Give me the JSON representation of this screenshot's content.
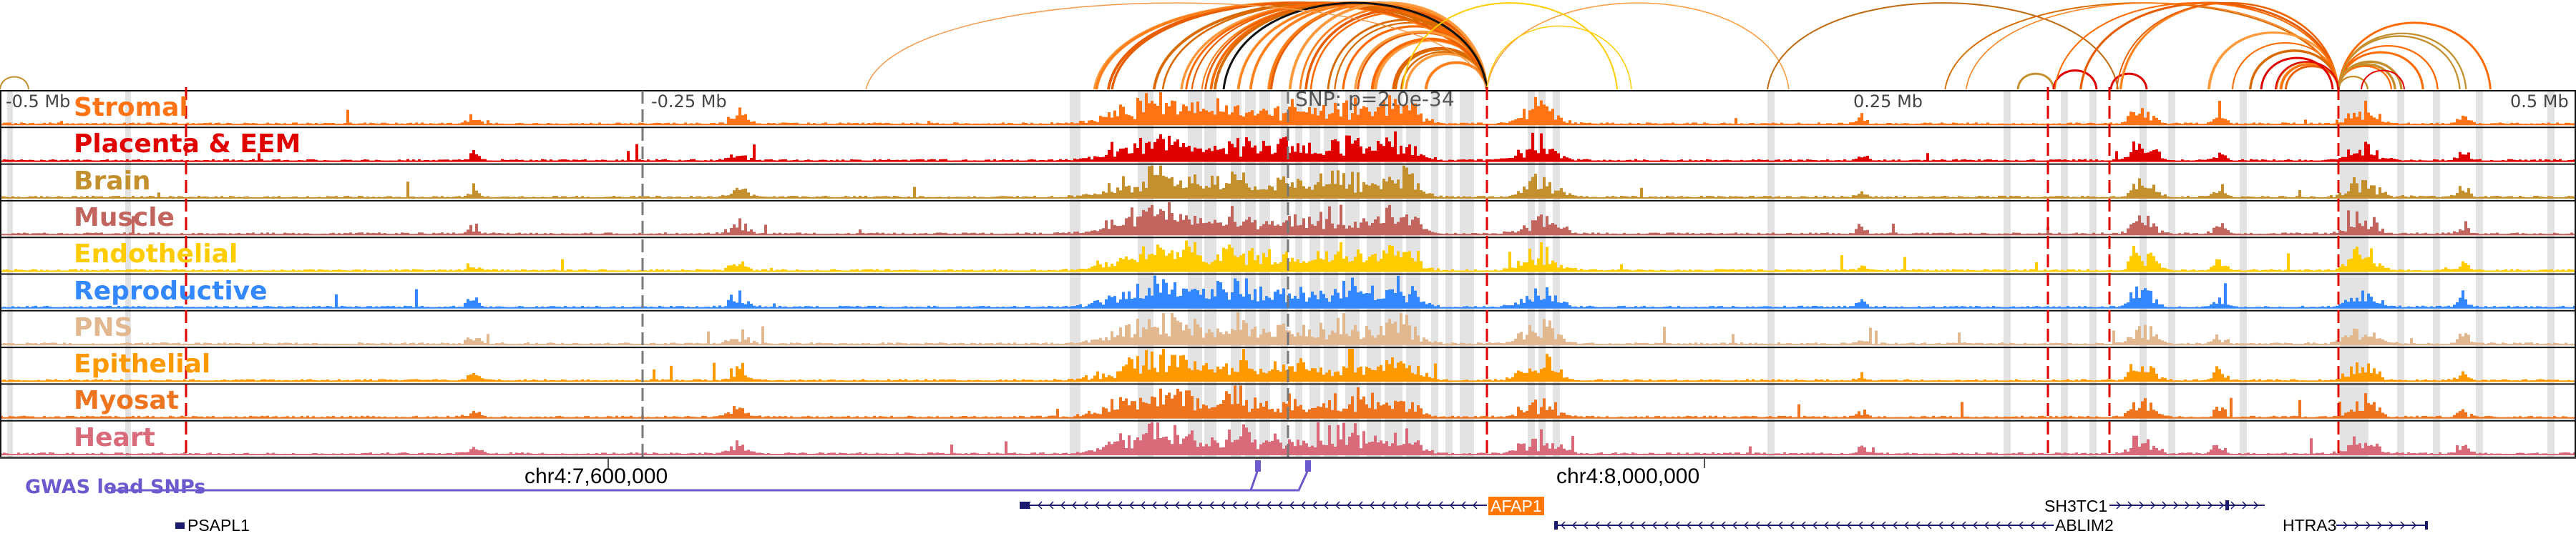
{
  "tracks": [
    {
      "name": "Stromal",
      "color": "#ff7314"
    },
    {
      "name": "Placenta & EEM",
      "color": "#e00000"
    },
    {
      "name": "Brain",
      "color": "#c4902e"
    },
    {
      "name": "Muscle",
      "color": "#c2655f"
    },
    {
      "name": "Endothelial",
      "color": "#ffcc00"
    },
    {
      "name": "Reproductive",
      "color": "#3388ff"
    },
    {
      "name": "PNS",
      "color": "#e2b890"
    },
    {
      "name": "Epithelial",
      "color": "#ff9900"
    },
    {
      "name": "Myosat",
      "color": "#ee7420"
    },
    {
      "name": "Heart",
      "color": "#d96a7a"
    }
  ],
  "scale": {
    "left_outer": "-0.5 Mb",
    "left_inner": "-0.25 Mb",
    "right_inner": "0.25 Mb",
    "right_outer": "0.5 Mb"
  },
  "snp_label": "SNP: p=2.0e-34",
  "axis": {
    "coord1": "chr4:7,600,000",
    "coord2": "chr4:8,000,000"
  },
  "gwas_label": "GWAS lead SNPs",
  "genes": {
    "afap1": "AFAP1",
    "ablim2": "ABLIM2",
    "sh3tc1": "SH3TC1",
    "htra3": "HTRA3",
    "psapl1": "PSAPL1"
  },
  "colors": {
    "gwas": "#6a5acd",
    "gene": "#1a1a6e",
    "highlight": "#e3e3e3",
    "marker": "#e00000"
  }
}
